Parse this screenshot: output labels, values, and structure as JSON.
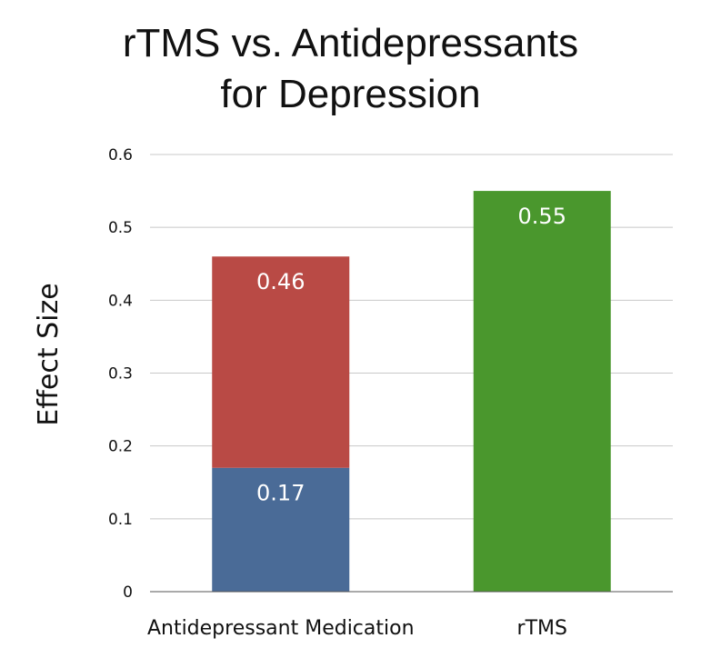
{
  "chart_data": {
    "type": "bar",
    "title_lines": [
      "rTMS vs. Antidepressants",
      "for Depression"
    ],
    "ylabel": "Effect Size",
    "xlabel": "",
    "ylim": [
      0,
      0.6
    ],
    "yticks": [
      "0",
      "0.1",
      "0.2",
      "0.3",
      "0.4",
      "0.5",
      "0.6"
    ],
    "grid": true,
    "legend": "none",
    "categories": [
      "Antidepressant Medication",
      "rTMS"
    ],
    "bars": [
      {
        "category": "Antidepressant Medication",
        "segments": [
          {
            "from": 0,
            "to": 0.17,
            "label": "0.17",
            "color": "#4a6b97"
          },
          {
            "from": 0.17,
            "to": 0.46,
            "label": "0.46",
            "color": "#b94a45"
          }
        ]
      },
      {
        "category": "rTMS",
        "segments": [
          {
            "from": 0,
            "to": 0.55,
            "label": "0.55",
            "color": "#4a972d"
          }
        ]
      }
    ]
  }
}
